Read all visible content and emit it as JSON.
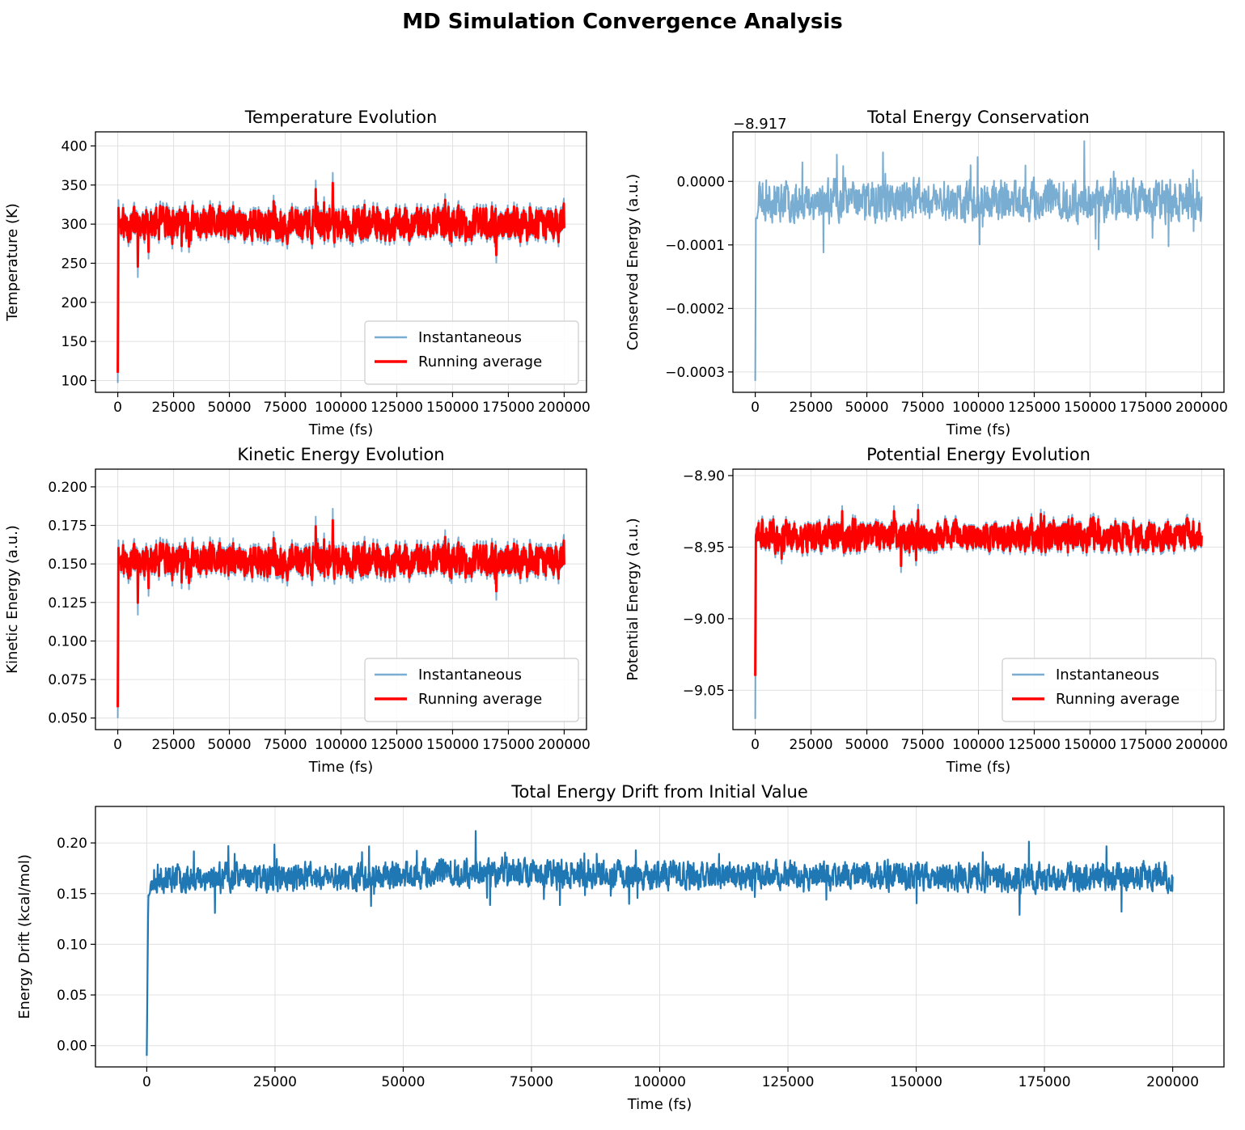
{
  "suptitle": "MD Simulation Convergence Analysis",
  "colors": {
    "instantaneous": "#1f77b4",
    "running_average": "#ff0000",
    "drift": "#1f77b4",
    "grid": "#e0e0e0"
  },
  "chart_data": [
    {
      "id": "temp",
      "type": "line",
      "title": "Temperature Evolution",
      "xlabel": "Time (fs)",
      "ylabel": "Temperature (K)",
      "xlim": [
        -10000,
        210000
      ],
      "ylim": [
        85,
        418
      ],
      "xticks": [
        0,
        25000,
        50000,
        75000,
        100000,
        125000,
        150000,
        175000,
        200000
      ],
      "yticks": [
        100,
        150,
        200,
        250,
        300,
        350,
        400
      ],
      "ytick_labels": [
        "100",
        "150",
        "200",
        "250",
        "300",
        "350",
        "400"
      ],
      "grid": true,
      "legend": "lower right",
      "series": [
        {
          "name": "Instantaneous",
          "color": "#1f77b4",
          "alpha": 0.6,
          "width": 2,
          "x": [
            0,
            300,
            800,
            2000,
            5000,
            12000,
            20000,
            30000,
            42000,
            54000,
            66000,
            78000,
            90000,
            100000,
            110000,
            122000,
            135000,
            148000,
            160000,
            175000,
            188000,
            200000
          ],
          "y": [
            97,
            330,
            300,
            300,
            300,
            300,
            300,
            300,
            300,
            300,
            300,
            300,
            300,
            300,
            300,
            300,
            300,
            300,
            300,
            300,
            300,
            300
          ],
          "noise_amp": 35,
          "seed": 11
        },
        {
          "name": "Running average",
          "color": "#ff0000",
          "alpha": 1,
          "width": 3,
          "x": [
            0,
            300,
            800,
            2000,
            5000,
            12000,
            20000,
            30000,
            42000,
            54000,
            66000,
            78000,
            90000,
            100000,
            110000,
            122000,
            135000,
            148000,
            160000,
            175000,
            188000,
            200000
          ],
          "y": [
            110,
            320,
            300,
            300,
            300,
            300,
            300,
            300,
            300,
            300,
            300,
            300,
            300,
            300,
            300,
            300,
            300,
            300,
            300,
            300,
            300,
            300
          ],
          "noise_amp": 28,
          "seed": 11
        }
      ]
    },
    {
      "id": "etot",
      "type": "line",
      "title": "Total Energy Conservation",
      "xlabel": "Time (fs)",
      "ylabel": "Conserved Energy (a.u.)",
      "offset_label": "−8.917",
      "xlim": [
        -10000,
        210000
      ],
      "ylim": [
        -0.000332,
        7.8e-05
      ],
      "xticks": [
        0,
        25000,
        50000,
        75000,
        100000,
        125000,
        150000,
        175000,
        200000
      ],
      "yticks": [
        -0.0003,
        -0.0002,
        -0.0001,
        0
      ],
      "ytick_labels": [
        "−0.0003",
        "−0.0002",
        "−0.0001",
        "0.0000"
      ],
      "grid": true,
      "series": [
        {
          "name": "",
          "color": "#1f77b4",
          "alpha": 0.6,
          "width": 2,
          "x": [
            0,
            300,
            1500,
            5000,
            15000,
            30000,
            50000,
            75000,
            100000,
            125000,
            150000,
            175000,
            200000
          ],
          "y": [
            -0.000314,
            -6e-05,
            -2e-05,
            -3e-05,
            -3e-05,
            -3e-05,
            -3e-05,
            -3e-05,
            -3e-05,
            -3e-05,
            -3e-05,
            -3e-05,
            -3e-05
          ],
          "noise_amp": 4.2e-05,
          "seed": 23
        }
      ]
    },
    {
      "id": "ke",
      "type": "line",
      "title": "Kinetic Energy Evolution",
      "xlabel": "Time (fs)",
      "ylabel": "Kinetic Energy (a.u.)",
      "xlim": [
        -10000,
        210000
      ],
      "ylim": [
        0.0425,
        0.2115
      ],
      "xticks": [
        0,
        25000,
        50000,
        75000,
        100000,
        125000,
        150000,
        175000,
        200000
      ],
      "yticks": [
        0.05,
        0.075,
        0.1,
        0.125,
        0.15,
        0.175,
        0.2
      ],
      "ytick_labels": [
        "0.050",
        "0.075",
        "0.100",
        "0.125",
        "0.150",
        "0.175",
        "0.200"
      ],
      "grid": true,
      "legend": "lower right",
      "series": [
        {
          "name": "Instantaneous",
          "color": "#1f77b4",
          "alpha": 0.6,
          "width": 2,
          "x": [
            0,
            300,
            800,
            2000,
            10000,
            25000,
            50000,
            75000,
            100000,
            125000,
            150000,
            175000,
            200000
          ],
          "y": [
            0.05,
            0.165,
            0.152,
            0.152,
            0.152,
            0.152,
            0.152,
            0.152,
            0.152,
            0.152,
            0.152,
            0.152,
            0.152
          ],
          "noise_amp": 0.018,
          "seed": 11
        },
        {
          "name": "Running average",
          "color": "#ff0000",
          "alpha": 1,
          "width": 3,
          "x": [
            0,
            300,
            800,
            2000,
            10000,
            25000,
            50000,
            75000,
            100000,
            125000,
            150000,
            175000,
            200000
          ],
          "y": [
            0.057,
            0.16,
            0.152,
            0.152,
            0.152,
            0.152,
            0.152,
            0.152,
            0.152,
            0.152,
            0.152,
            0.152,
            0.152
          ],
          "noise_amp": 0.014,
          "seed": 11
        }
      ]
    },
    {
      "id": "pe",
      "type": "line",
      "title": "Potential Energy Evolution",
      "xlabel": "Time (fs)",
      "ylabel": "Potential Energy (a.u.)",
      "xlim": [
        -10000,
        210000
      ],
      "ylim": [
        -9.0775,
        -8.8955
      ],
      "xticks": [
        0,
        25000,
        50000,
        75000,
        100000,
        125000,
        150000,
        175000,
        200000
      ],
      "yticks": [
        -9.05,
        -9.0,
        -8.95,
        -8.9
      ],
      "ytick_labels": [
        "−9.05",
        "−9.00",
        "−8.95",
        "−8.90"
      ],
      "grid": true,
      "legend": "lower right",
      "series": [
        {
          "name": "Instantaneous",
          "color": "#1f77b4",
          "alpha": 0.6,
          "width": 2,
          "x": [
            0,
            300,
            800,
            2000,
            10000,
            25000,
            50000,
            75000,
            100000,
            125000,
            150000,
            175000,
            200000
          ],
          "y": [
            -9.07,
            -8.935,
            -8.942,
            -8.942,
            -8.942,
            -8.942,
            -8.942,
            -8.942,
            -8.942,
            -8.942,
            -8.942,
            -8.942,
            -8.942
          ],
          "noise_amp": 0.017,
          "seed": 31
        },
        {
          "name": "Running average",
          "color": "#ff0000",
          "alpha": 1,
          "width": 3,
          "x": [
            0,
            300,
            800,
            2000,
            10000,
            25000,
            50000,
            75000,
            100000,
            125000,
            150000,
            175000,
            200000
          ],
          "y": [
            -9.04,
            -8.94,
            -8.942,
            -8.942,
            -8.942,
            -8.942,
            -8.942,
            -8.942,
            -8.942,
            -8.942,
            -8.942,
            -8.942,
            -8.942
          ],
          "noise_amp": 0.014,
          "seed": 31
        }
      ]
    },
    {
      "id": "drift",
      "type": "line",
      "title": "Total Energy Drift from Initial Value",
      "xlabel": "Time (fs)",
      "ylabel": "Energy Drift (kcal/mol)",
      "xlim": [
        -10000,
        210000
      ],
      "ylim": [
        -0.021,
        0.236
      ],
      "xticks": [
        0,
        25000,
        50000,
        75000,
        100000,
        125000,
        150000,
        175000,
        200000
      ],
      "yticks": [
        0,
        0.05,
        0.1,
        0.15,
        0.2
      ],
      "ytick_labels": [
        "0.00",
        "0.05",
        "0.10",
        "0.15",
        "0.20"
      ],
      "grid": true,
      "series": [
        {
          "name": "",
          "color": "#1f77b4",
          "alpha": 1,
          "width": 2.2,
          "x": [
            0,
            300,
            1500,
            5000,
            15000,
            30000,
            50000,
            65000,
            75000,
            100000,
            125000,
            150000,
            175000,
            198000,
            200000
          ],
          "y": [
            -0.01,
            0.15,
            0.165,
            0.166,
            0.166,
            0.166,
            0.168,
            0.172,
            0.17,
            0.168,
            0.168,
            0.167,
            0.165,
            0.168,
            0.16
          ],
          "noise_amp": 0.018,
          "seed": 23
        }
      ]
    }
  ]
}
